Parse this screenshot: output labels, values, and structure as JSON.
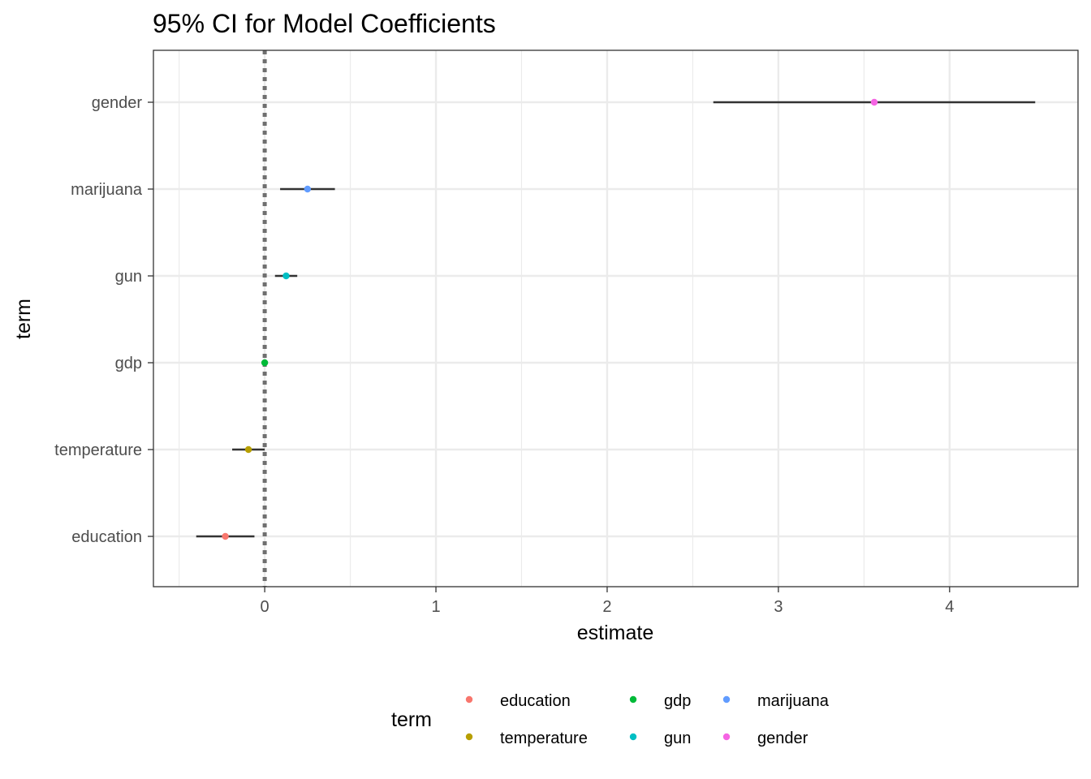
{
  "chart_data": {
    "type": "scatter",
    "subtype": "coefficient-interval",
    "title": "95% CI for Model Coefficients",
    "xlabel": "estimate",
    "ylabel": "term",
    "xlim": [
      -0.65,
      4.75
    ],
    "x_ticks": [
      0,
      1,
      2,
      3,
      4
    ],
    "x_tick_labels": [
      "0",
      "1",
      "2",
      "3",
      "4"
    ],
    "reference_line": {
      "x": 0,
      "style": "dotted",
      "color": "#6f6f6f"
    },
    "grid": true,
    "categories": [
      "education",
      "temperature",
      "gdp",
      "gun",
      "marijuana",
      "gender"
    ],
    "points": [
      {
        "term": "education",
        "estimate": -0.23,
        "conf_low": -0.4,
        "conf_high": -0.06,
        "color": "#F8766D"
      },
      {
        "term": "temperature",
        "estimate": -0.095,
        "conf_low": -0.19,
        "conf_high": 0.0,
        "color": "#B79F00"
      },
      {
        "term": "gdp",
        "estimate": 0.0,
        "conf_low": 0.0,
        "conf_high": 0.0,
        "color": "#00BA38"
      },
      {
        "term": "gun",
        "estimate": 0.125,
        "conf_low": 0.06,
        "conf_high": 0.19,
        "color": "#00BFC4"
      },
      {
        "term": "marijuana",
        "estimate": 0.25,
        "conf_low": 0.09,
        "conf_high": 0.41,
        "color": "#619CFF"
      },
      {
        "term": "gender",
        "estimate": 3.56,
        "conf_low": 2.62,
        "conf_high": 4.5,
        "color": "#F564E3"
      }
    ],
    "legend": {
      "title": "term",
      "position": "bottom",
      "entries": [
        {
          "label": "education",
          "color": "#F8766D"
        },
        {
          "label": "temperature",
          "color": "#B79F00"
        },
        {
          "label": "gdp",
          "color": "#00BA38"
        },
        {
          "label": "gun",
          "color": "#00BFC4"
        },
        {
          "label": "marijuana",
          "color": "#619CFF"
        },
        {
          "label": "gender",
          "color": "#F564E3"
        }
      ]
    }
  }
}
